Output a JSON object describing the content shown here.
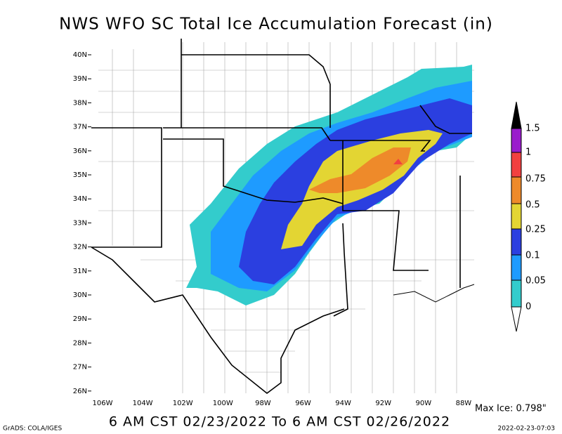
{
  "title": "NWS WFO SC Total Ice Accumulation Forecast (in)",
  "latitude_labels": [
    "40N",
    "39N",
    "38N",
    "37N",
    "36N",
    "35N",
    "34N",
    "33N",
    "32N",
    "31N",
    "30N",
    "29N",
    "28N",
    "27N",
    "26N"
  ],
  "longitude_labels": [
    "106W",
    "104W",
    "102W",
    "100W",
    "98W",
    "96W",
    "94W",
    "92W",
    "90W",
    "88W"
  ],
  "legend": {
    "labels": [
      "1.5",
      "1",
      "0.75",
      "0.5",
      "0.25",
      "0.1",
      "0.05",
      "0"
    ]
  },
  "max_ice": "Max Ice: 0.798\"",
  "valid_period": "6 AM CST 02/23/2022 To 6 AM CST 02/26/2022",
  "credit": "GrADS: COLA/IGES",
  "timestamp": "2022-02-23-07:03"
}
